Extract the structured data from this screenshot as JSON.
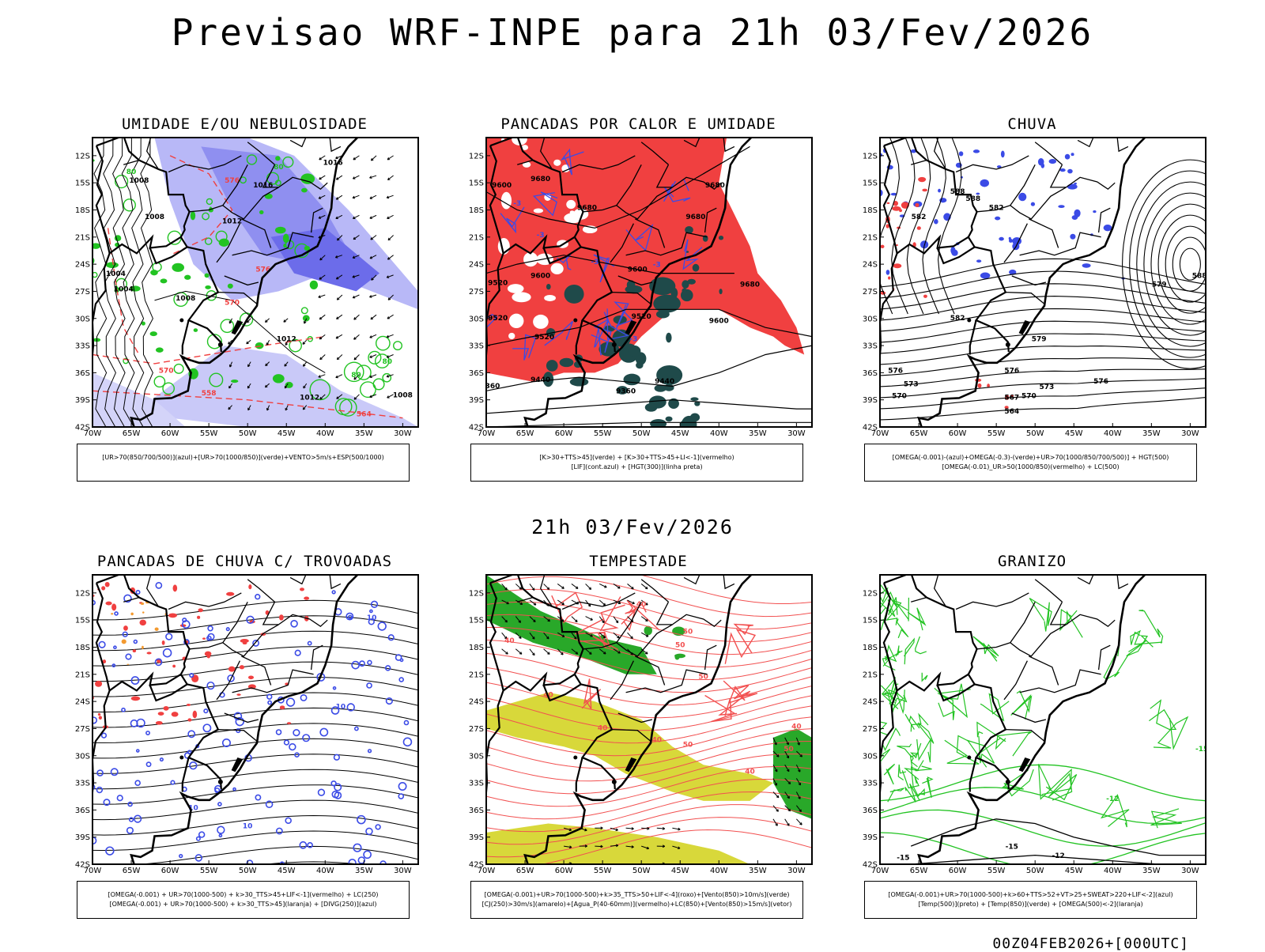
{
  "title": "Previsao WRF-INPE  para 21h 03/Fev/2026",
  "mid_title": "21h 03/Fev/2026",
  "footer": "00Z04FEB2026+[000UTC]",
  "axis": {
    "lat_ticks": [
      "12S",
      "15S",
      "18S",
      "21S",
      "24S",
      "27S",
      "30S",
      "33S",
      "36S",
      "39S",
      "42S"
    ],
    "lon_ticks": [
      "70W",
      "65W",
      "60W",
      "55W",
      "50W",
      "45W",
      "40W",
      "35W",
      "30W"
    ]
  },
  "panels": [
    {
      "title": "UMIDADE E/OU NEBULOSIDADE",
      "legend": [
        "[UR>70(850/700/500)](azul)+[UR>70(1000/850)](verde)+VENTO>5m/s+ESP(500/1000)"
      ],
      "labels": [
        "1016",
        "1016",
        "1012",
        "1012",
        "1008",
        "1008",
        "1004",
        "1004",
        "1008",
        "1012",
        "1008",
        "576",
        "576",
        "570",
        "570",
        "564",
        "558",
        "80",
        "80",
        "80",
        "80"
      ]
    },
    {
      "title": "PANCADAS POR CALOR E UMIDADE",
      "legend": [
        "[K>30+TTS>45](verde) + [K>30+TTS>45+LI<-1](vermelho)",
        "[LIF](cont.azul) + [HGT(300)](linha preta)"
      ],
      "labels": [
        "9680",
        "9680",
        "9680",
        "9680",
        "9600",
        "9600",
        "9600",
        "9680",
        "9520",
        "9520",
        "9520",
        "9520",
        "9600",
        "9440",
        "9440",
        "9360",
        "9360",
        "-3",
        "-3",
        "-3",
        "-3",
        "-3"
      ]
    },
    {
      "title": "CHUVA",
      "legend": [
        "[OMEGA(-0.001)-(azul)+OMEGA(-0.3)-(verde)+UR>70(1000/850/700/500)] + HGT(500)",
        "[OMEGA(-0.01)_UR>50(1000/850)(vermelho) + LC(500)"
      ],
      "labels": [
        "588",
        "588",
        "582",
        "582",
        "582",
        "579",
        "579",
        "576",
        "576",
        "576",
        "573",
        "573",
        "570",
        "570",
        "567",
        "564",
        "588"
      ]
    },
    {
      "title": "PANCADAS DE CHUVA C/ TROVOADAS",
      "legend": [
        "[OMEGA(-0.001) + UR>70(1000-500) + k>30_TTS>45+LIF<-1](vermelho) + LC(250)",
        "[OMEGA(-0.001) + UR>70(1000-500) + k>30_TTS>45](laranja) + [DIVG(250)](azul)"
      ],
      "labels": [
        "10",
        "10",
        "10",
        "10"
      ]
    },
    {
      "title": "TEMPESTADE",
      "legend": [
        "[OMEGA(-0.001)+UR>70(1000-500)+k>35_TTS>50+LIF<-4](roxo)+[Vento(850)>10m/s](verde)",
        "[CJ(250)>30m/s](amarelo)+[Agua_P(40-60mm)](vermelho)+LC(850)+[Vento(850)>15m/s](vetor)"
      ],
      "labels": [
        "40",
        "40",
        "40",
        "40",
        "50",
        "50",
        "50",
        "40",
        "50",
        "40",
        "50",
        "40"
      ]
    },
    {
      "title": "GRANIZO",
      "legend": [
        "[OMEGA(-0.001)+UR>70(1000-500)+k>60+TTS>52+VT>25+SWEAT>220+LIF<-2](azul)",
        "[Temp(500)](preto) + [Temp(850)](verde) + [OMEGA(500)<-2](laranja)"
      ],
      "labels": [
        "-15",
        "-15",
        "-12",
        "-12",
        "-15"
      ]
    }
  ],
  "colors": {
    "blue_fill": "#8f8ff0",
    "blue_dark": "#3b4be6",
    "green": "#22c322",
    "red": "#f04040",
    "dark_teal": "#1f4a4a",
    "yellow": "#d8d83a",
    "red_line": "#f25050",
    "green_wind": "#29a829"
  }
}
